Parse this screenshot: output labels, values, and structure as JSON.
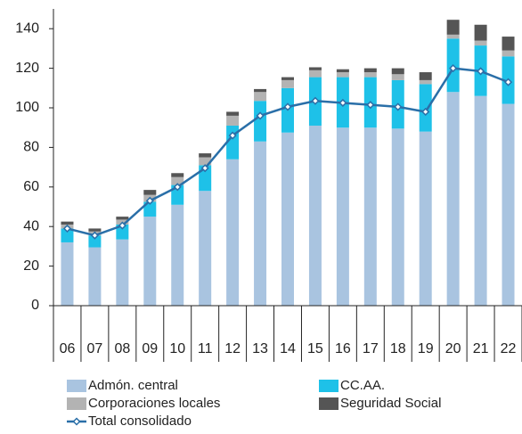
{
  "chart_data": {
    "type": "bar",
    "stacked": true,
    "categories": [
      "06",
      "07",
      "08",
      "09",
      "10",
      "11",
      "12",
      "13",
      "14",
      "15",
      "16",
      "17",
      "18",
      "19",
      "20",
      "21",
      "22"
    ],
    "ylim": [
      0,
      150
    ],
    "yticks": [
      0,
      20,
      40,
      60,
      80,
      100,
      120,
      140
    ],
    "series": [
      {
        "name": "Admón. central",
        "color": "#a9c4e0",
        "values": [
          32,
          29.5,
          33.5,
          45,
          51,
          58,
          74,
          83,
          87.5,
          91,
          90,
          90,
          89.5,
          88,
          108,
          106,
          102
        ]
      },
      {
        "name": "CC.AA.",
        "color": "#1ec1e8",
        "values": [
          7,
          6,
          7.5,
          7.5,
          10,
          13,
          17,
          20.5,
          22.5,
          24.5,
          25.5,
          25.5,
          24.5,
          24,
          27,
          25.5,
          24
        ]
      },
      {
        "name": "Corporaciones locales",
        "color": "#b3b3b3",
        "values": [
          2,
          2,
          2.5,
          3.5,
          4,
          4,
          5,
          4.5,
          4,
          3.5,
          2.5,
          2.5,
          3,
          2,
          2,
          2.5,
          3
        ]
      },
      {
        "name": "Seguridad Social",
        "color": "#555555",
        "values": [
          1.5,
          1.5,
          1.5,
          2.5,
          2,
          2,
          2,
          1.5,
          1.5,
          1.5,
          1.5,
          2,
          3,
          4,
          7.5,
          8,
          7
        ]
      },
      {
        "name": "Total consolidado",
        "color": "#2a6fa8",
        "type": "line",
        "values": [
          39,
          35.5,
          40.5,
          53,
          60,
          69.5,
          86,
          96,
          100.5,
          103.5,
          102.5,
          101.5,
          100.5,
          98,
          120,
          118.5,
          113
        ]
      }
    ]
  }
}
